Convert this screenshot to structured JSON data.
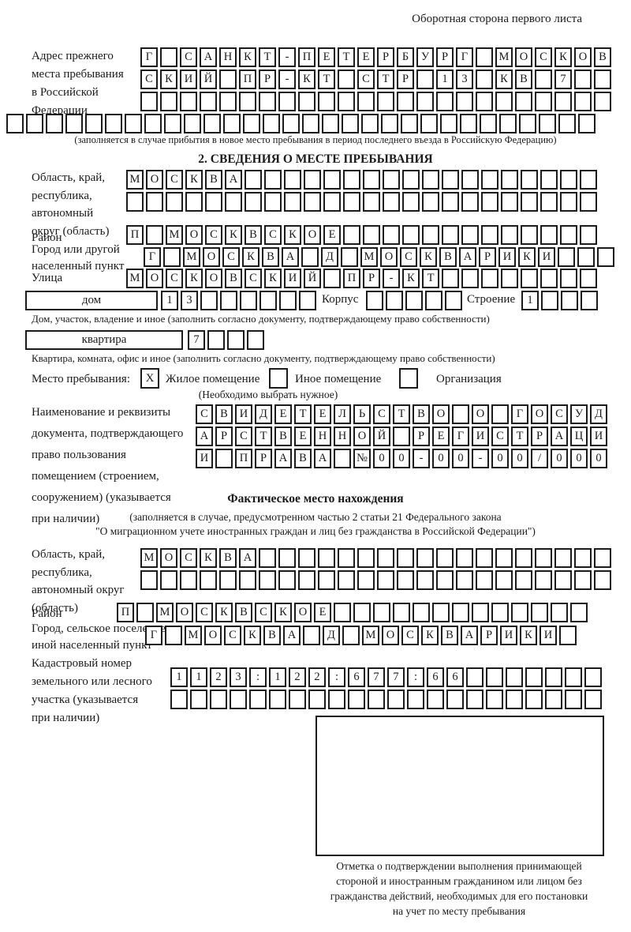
{
  "page": {
    "header_note": "Оборотная сторона первого листа"
  },
  "prev_address": {
    "label_lines": [
      "Адрес прежнего",
      "места пребывания",
      "в Российской",
      "Федерации"
    ],
    "rows": [
      [
        "Г",
        "",
        "С",
        "А",
        "Н",
        "К",
        "Т",
        "-",
        "П",
        "Е",
        "Т",
        "Е",
        "Р",
        "Б",
        "У",
        "Р",
        "Г",
        "",
        "М",
        "О",
        "С",
        "К",
        "О",
        "В"
      ],
      [
        "С",
        "К",
        "И",
        "Й",
        "",
        "П",
        "Р",
        "-",
        "К",
        "Т",
        "",
        "С",
        "Т",
        "Р",
        "",
        "1",
        "3",
        "",
        "К",
        "В",
        "",
        "7",
        "",
        ""
      ],
      [
        "",
        "",
        "",
        "",
        "",
        "",
        "",
        "",
        "",
        "",
        "",
        "",
        "",
        "",
        "",
        "",
        "",
        "",
        "",
        "",
        "",
        "",
        "",
        ""
      ],
      [
        "",
        "",
        "",
        "",
        "",
        "",
        "",
        "",
        "",
        "",
        "",
        "",
        "",
        "",
        "",
        "",
        "",
        "",
        "",
        "",
        "",
        "",
        "",
        "",
        "",
        "",
        "",
        "",
        "",
        ""
      ]
    ],
    "note": "(заполняется в случае прибытия в новое место пребывания в период последнего въезда в Российскую Федерацию)"
  },
  "section2": {
    "title": "2. СВЕДЕНИЯ О МЕСТЕ ПРЕБЫВАНИЯ",
    "oblast": {
      "label_lines": [
        "Область, край,",
        "республика,",
        "автономный",
        "округ (область)"
      ],
      "rows": [
        [
          "М",
          "О",
          "С",
          "К",
          "В",
          "А",
          "",
          "",
          "",
          "",
          "",
          "",
          "",
          "",
          "",
          "",
          "",
          "",
          "",
          "",
          "",
          "",
          "",
          ""
        ],
        [
          "",
          "",
          "",
          "",
          "",
          "",
          "",
          "",
          "",
          "",
          "",
          "",
          "",
          "",
          "",
          "",
          "",
          "",
          "",
          "",
          "",
          "",
          "",
          ""
        ]
      ]
    },
    "raion": {
      "label": "Район",
      "cells": [
        "П",
        "",
        "М",
        "О",
        "С",
        "К",
        "В",
        "С",
        "К",
        "О",
        "Е",
        "",
        "",
        "",
        "",
        "",
        "",
        "",
        "",
        "",
        "",
        "",
        "",
        ""
      ]
    },
    "gorod": {
      "label_lines": [
        "Город или другой",
        "населенный пункт"
      ],
      "cells": [
        "Г",
        "",
        "М",
        "О",
        "С",
        "К",
        "В",
        "А",
        "",
        "Д",
        "",
        "М",
        "О",
        "С",
        "К",
        "В",
        "А",
        "Р",
        "И",
        "К",
        "И",
        "",
        "",
        ""
      ]
    },
    "ulitsa": {
      "label": "Улица",
      "cells": [
        "М",
        "О",
        "С",
        "К",
        "О",
        "В",
        "С",
        "К",
        "И",
        "Й",
        "",
        "П",
        "Р",
        "-",
        "К",
        "Т",
        "",
        "",
        "",
        "",
        "",
        "",
        "",
        ""
      ]
    },
    "dom": {
      "label": "дом",
      "cells": [
        "1",
        "3",
        "",
        "",
        "",
        "",
        "",
        ""
      ],
      "korpus_label": "Корпус",
      "korpus_cells": [
        "",
        "",
        "",
        "",
        ""
      ],
      "stroenie_label": "Строение",
      "stroenie_cells": [
        "1",
        "",
        "",
        ""
      ],
      "note": "Дом, участок, владение и иное (заполнить согласно документу, подтверждающему право собственности)"
    },
    "kvartira": {
      "label": "квартира",
      "cells": [
        "7",
        "",
        "",
        ""
      ],
      "note": "Квартира, комната, офис и иное (заполнить согласно документу, подтверждающему право собственности)"
    },
    "mesto": {
      "label": "Место пребывания:",
      "options": [
        {
          "label": "Жилое помещение",
          "mark": "X"
        },
        {
          "label": "Иное помещение",
          "mark": ""
        },
        {
          "label": "Организация",
          "mark": ""
        }
      ],
      "note": "(Необходимо выбрать нужное)"
    },
    "doc": {
      "label_lines": [
        "Наименование и реквизиты",
        "документа, подтверждающего",
        "право пользования",
        "помещением (строением,",
        "сооружением) (указывается",
        "при наличии)"
      ],
      "rows": [
        [
          "С",
          "В",
          "И",
          "Д",
          "Е",
          "Т",
          "Е",
          "Л",
          "Ь",
          "С",
          "Т",
          "В",
          "О",
          "",
          "О",
          "",
          "Г",
          "О",
          "С",
          "У",
          "Д"
        ],
        [
          "А",
          "Р",
          "С",
          "Т",
          "В",
          "Е",
          "Н",
          "Н",
          "О",
          "Й",
          "",
          "Р",
          "Е",
          "Г",
          "И",
          "С",
          "Т",
          "Р",
          "А",
          "Ц",
          "И"
        ],
        [
          "И",
          "",
          "П",
          "Р",
          "А",
          "В",
          "А",
          "",
          "№",
          "0",
          "0",
          "-",
          "0",
          "0",
          "-",
          "0",
          "0",
          "/",
          "0",
          "0",
          "0"
        ]
      ]
    }
  },
  "factual": {
    "title": "Фактическое место нахождения",
    "note_lines": [
      "(заполняется в случае, предусмотренном частью 2 статьи 21 Федерального закона",
      "\"О миграционном учете иностранных граждан и лиц без гражданства в Российской Федерации\")"
    ],
    "oblast": {
      "label_lines": [
        "Область, край,",
        "республика,",
        "автономный округ",
        "(область)"
      ],
      "rows": [
        [
          "М",
          "О",
          "С",
          "К",
          "В",
          "А",
          "",
          "",
          "",
          "",
          "",
          "",
          "",
          "",
          "",
          "",
          "",
          "",
          "",
          "",
          "",
          "",
          "",
          ""
        ],
        [
          "",
          "",
          "",
          "",
          "",
          "",
          "",
          "",
          "",
          "",
          "",
          "",
          "",
          "",
          "",
          "",
          "",
          "",
          "",
          "",
          "",
          "",
          "",
          ""
        ]
      ]
    },
    "raion": {
      "label": "Район",
      "cells": [
        "П",
        "",
        "М",
        "О",
        "С",
        "К",
        "В",
        "С",
        "К",
        "О",
        "Е",
        "",
        "",
        "",
        "",
        "",
        "",
        "",
        "",
        "",
        "",
        "",
        "",
        ""
      ]
    },
    "gorod": {
      "label_lines": [
        "Город, сельское поселение,",
        "иной населенный пункт"
      ],
      "cells": [
        "Г",
        "",
        "М",
        "О",
        "С",
        "К",
        "В",
        "А",
        "",
        "Д",
        "",
        "М",
        "О",
        "С",
        "К",
        "В",
        "А",
        "Р",
        "И",
        "К",
        "И",
        ""
      ]
    },
    "kadastr": {
      "label_lines": [
        "Кадастровый номер",
        "земельного или лесного",
        "участка (указывается",
        "при наличии)"
      ],
      "rows": [
        [
          "1",
          "1",
          "2",
          "3",
          ":",
          "1",
          "2",
          "2",
          ":",
          "6",
          "7",
          "7",
          ":",
          "6",
          "6",
          "",
          "",
          "",
          "",
          "",
          "",
          ""
        ],
        [
          "",
          "",
          "",
          "",
          "",
          "",
          "",
          "",
          "",
          "",
          "",
          "",
          "",
          "",
          "",
          "",
          "",
          "",
          "",
          "",
          "",
          ""
        ]
      ]
    },
    "stamp_caption_lines": [
      "Отметка о подтверждении выполнения принимающей",
      "стороной и иностранным гражданином или лицом без",
      "гражданства действий, необходимых для его постановки",
      "на учет по месту пребывания"
    ]
  }
}
